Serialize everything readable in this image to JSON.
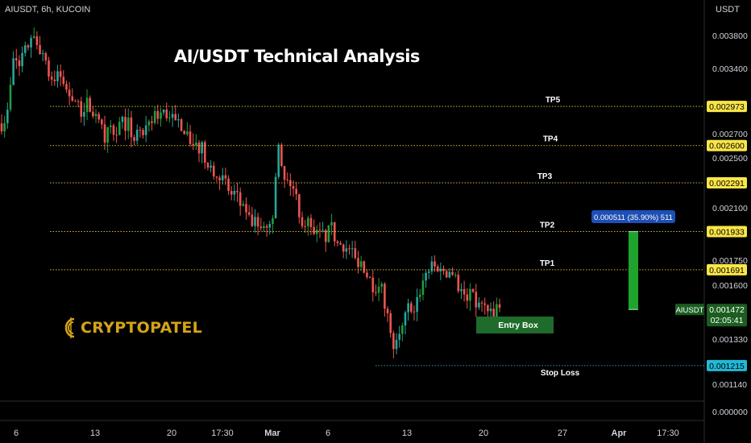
{
  "header": {
    "symbol_line": "AIUSDT, 6h, KUCOIN",
    "currency": "USDT"
  },
  "title": "AI/USDT Technical Analysis",
  "logo": {
    "text": "CRYPTOPATEL"
  },
  "colors": {
    "up": "#26a69a",
    "up_green": "#1f9e3b",
    "down": "#ef5350",
    "target_line": "#d4b832",
    "target_badge": "#f9e547",
    "stop_badge": "#22b8d6",
    "stop_line": "#3a8fa8",
    "entry_box": "#1e6b2c",
    "measure_bar": "#1fa32e",
    "measure_label": "#1e4fb5",
    "last_price_badge": "#1b5e20"
  },
  "chart_data": {
    "type": "candlestick",
    "symbol": "AIUSDT",
    "timeframe": "6h",
    "exchange": "KUCOIN",
    "y_axis": {
      "scale": "log",
      "ticks": [
        "0.003800",
        "0.003400",
        "0.002700",
        "0.002500",
        "0.002100",
        "0.001750",
        "0.001600",
        "0.001330",
        "0.001140",
        "0.000000"
      ]
    },
    "x_axis": {
      "ticks": [
        "6",
        "13",
        "20",
        "17:30",
        "Mar",
        "6",
        "13",
        "20",
        "27",
        "Apr",
        "17:30"
      ]
    },
    "levels": [
      {
        "label": "TP5",
        "value": "0.002973",
        "kind": "target"
      },
      {
        "label": "TP4",
        "value": "0.002600",
        "kind": "target"
      },
      {
        "label": "TP3",
        "value": "0.002291",
        "kind": "target"
      },
      {
        "label": "TP2",
        "value": "0.001933",
        "kind": "target"
      },
      {
        "label": "TP1",
        "value": "0.001691",
        "kind": "target"
      },
      {
        "label": "Stop Loss",
        "value": "0.001215",
        "kind": "stop"
      }
    ],
    "entry_box_label": "Entry Box",
    "measure_label": "0.000511 (35.90%) 511",
    "last_price": {
      "symbol": "AIUSDT",
      "value": "0.001472",
      "countdown": "02:05:41"
    },
    "price_path": [
      [
        0.0028,
        0.0029,
        0.0035
      ],
      [
        0.0035,
        0.0036,
        0.0038
      ],
      [
        0.00365,
        0.0036,
        0.0033
      ],
      [
        0.0033,
        0.0033,
        0.0031
      ],
      [
        0.0031,
        0.0029,
        0.003
      ],
      [
        0.003,
        0.0028,
        0.0027
      ],
      [
        0.0027,
        0.00275,
        0.0028
      ],
      [
        0.0028,
        0.00265,
        0.0027
      ],
      [
        0.0027,
        0.0028,
        0.0029
      ],
      [
        0.0029,
        0.0029,
        0.0028
      ],
      [
        0.0028,
        0.0027,
        0.0026
      ],
      [
        0.0026,
        0.0025,
        0.0024
      ],
      [
        0.0024,
        0.0023,
        0.0022
      ],
      [
        0.0022,
        0.0021,
        0.002
      ],
      [
        0.002,
        0.00195,
        0.00195
      ],
      [
        0.00195,
        0.0026,
        0.0023
      ],
      [
        0.0023,
        0.0022,
        0.002
      ],
      [
        0.002,
        0.0019,
        0.0019
      ],
      [
        0.0019,
        0.00195,
        0.00185
      ],
      [
        0.00185,
        0.0018,
        0.00175
      ],
      [
        0.00175,
        0.00165,
        0.0016
      ],
      [
        0.0016,
        0.0015,
        0.0013
      ],
      [
        0.0013,
        0.0014,
        0.0015
      ],
      [
        0.0015,
        0.0016,
        0.0017
      ],
      [
        0.0017,
        0.00172,
        0.00168
      ],
      [
        0.00168,
        0.0016,
        0.00155
      ],
      [
        0.00155,
        0.0015,
        0.00148
      ],
      [
        0.00148,
        0.00147,
        0.00147
      ]
    ]
  }
}
